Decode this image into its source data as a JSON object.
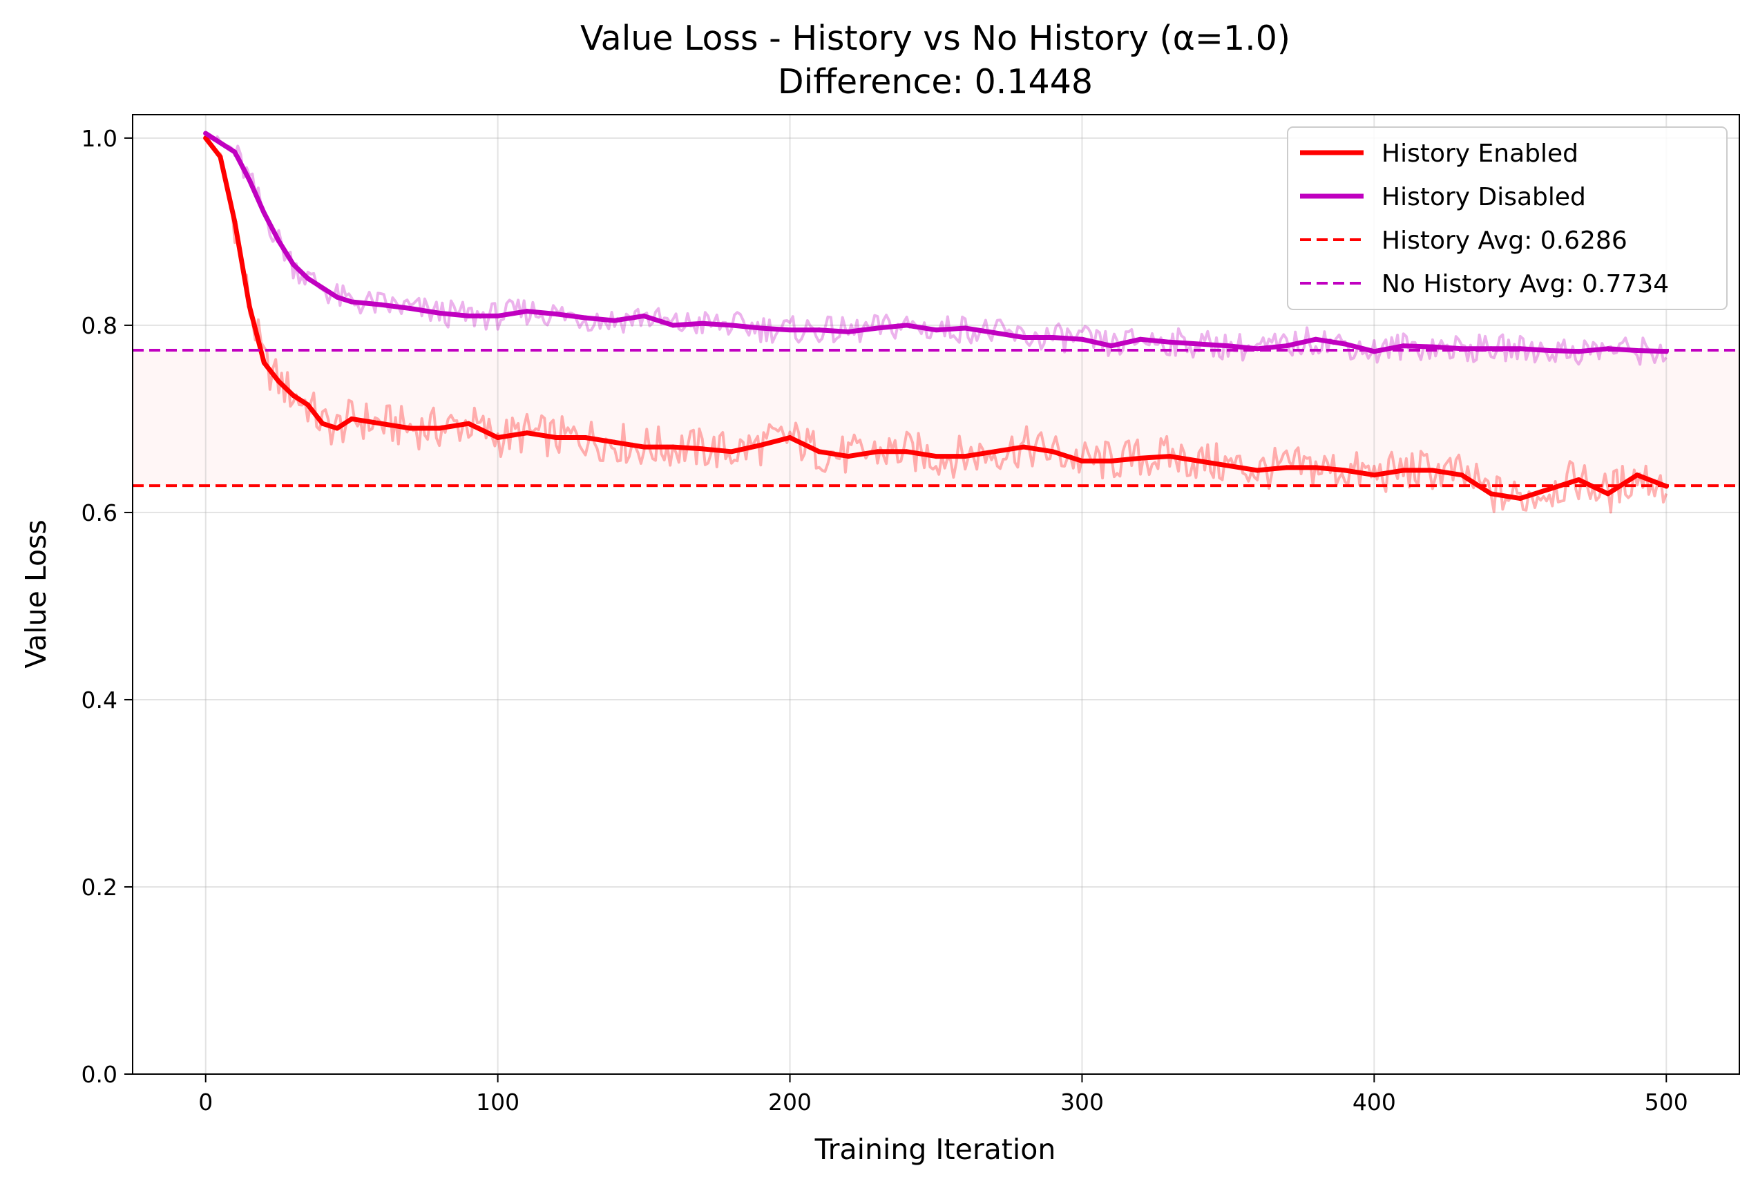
{
  "chart_data": {
    "type": "line",
    "title": "Value Loss - History vs No History (α=1.0)",
    "subtitle": "Difference: 0.1448",
    "xlabel": "Training Iteration",
    "ylabel": "Value Loss",
    "xlim": [
      -25,
      525
    ],
    "ylim": [
      0.0,
      1.025
    ],
    "xticks": [
      0,
      100,
      200,
      300,
      400,
      500
    ],
    "xtick_labels": [
      "0",
      "100",
      "200",
      "300",
      "400",
      "500"
    ],
    "yticks": [
      0.0,
      0.2,
      0.4,
      0.6,
      0.8,
      1.0
    ],
    "ytick_labels": [
      "0.0",
      "0.2",
      "0.4",
      "0.6",
      "0.8",
      "1.0"
    ],
    "grid": true,
    "legend_position": "top-right",
    "series": [
      {
        "name": "History Enabled",
        "color": "#ff0000",
        "style": "solid",
        "x": [
          0,
          5,
          10,
          15,
          20,
          25,
          30,
          35,
          40,
          45,
          50,
          60,
          70,
          80,
          90,
          100,
          110,
          120,
          130,
          140,
          150,
          160,
          170,
          180,
          190,
          200,
          210,
          220,
          230,
          240,
          250,
          260,
          270,
          280,
          290,
          300,
          310,
          320,
          330,
          340,
          350,
          360,
          370,
          380,
          390,
          400,
          410,
          420,
          430,
          440,
          450,
          460,
          470,
          480,
          490,
          500
        ],
        "values": [
          1.0,
          0.98,
          0.91,
          0.82,
          0.76,
          0.74,
          0.725,
          0.715,
          0.695,
          0.69,
          0.7,
          0.695,
          0.69,
          0.69,
          0.695,
          0.68,
          0.685,
          0.68,
          0.68,
          0.675,
          0.67,
          0.67,
          0.668,
          0.665,
          0.672,
          0.68,
          0.665,
          0.66,
          0.665,
          0.665,
          0.66,
          0.66,
          0.665,
          0.67,
          0.665,
          0.655,
          0.655,
          0.658,
          0.66,
          0.655,
          0.65,
          0.645,
          0.648,
          0.648,
          0.645,
          0.64,
          0.645,
          0.645,
          0.64,
          0.62,
          0.615,
          0.625,
          0.635,
          0.62,
          0.64,
          0.628
        ]
      },
      {
        "name": "History Disabled",
        "color": "#c000c0",
        "style": "solid",
        "x": [
          0,
          5,
          10,
          15,
          20,
          25,
          30,
          35,
          40,
          45,
          50,
          60,
          70,
          80,
          90,
          100,
          110,
          120,
          130,
          140,
          150,
          160,
          170,
          180,
          190,
          200,
          210,
          220,
          230,
          240,
          250,
          260,
          270,
          280,
          290,
          300,
          310,
          320,
          330,
          340,
          350,
          360,
          370,
          380,
          390,
          400,
          410,
          420,
          430,
          440,
          450,
          460,
          470,
          480,
          490,
          500
        ],
        "values": [
          1.005,
          0.995,
          0.985,
          0.955,
          0.92,
          0.89,
          0.865,
          0.85,
          0.84,
          0.83,
          0.825,
          0.822,
          0.818,
          0.813,
          0.81,
          0.81,
          0.815,
          0.812,
          0.808,
          0.805,
          0.81,
          0.8,
          0.802,
          0.8,
          0.797,
          0.795,
          0.795,
          0.793,
          0.797,
          0.8,
          0.795,
          0.797,
          0.792,
          0.787,
          0.787,
          0.785,
          0.778,
          0.785,
          0.782,
          0.78,
          0.778,
          0.775,
          0.778,
          0.785,
          0.78,
          0.772,
          0.778,
          0.777,
          0.775,
          0.775,
          0.775,
          0.773,
          0.772,
          0.775,
          0.773,
          0.772
        ]
      },
      {
        "name": "History Avg: 0.6286",
        "color": "#ff0000",
        "style": "dashed",
        "value": 0.6286
      },
      {
        "name": "No History Avg: 0.7734",
        "color": "#c000c0",
        "style": "dashed",
        "value": 0.7734
      }
    ],
    "shaded_band": {
      "from": 0.6286,
      "to": 0.7734,
      "color": "#ffeeee"
    }
  }
}
